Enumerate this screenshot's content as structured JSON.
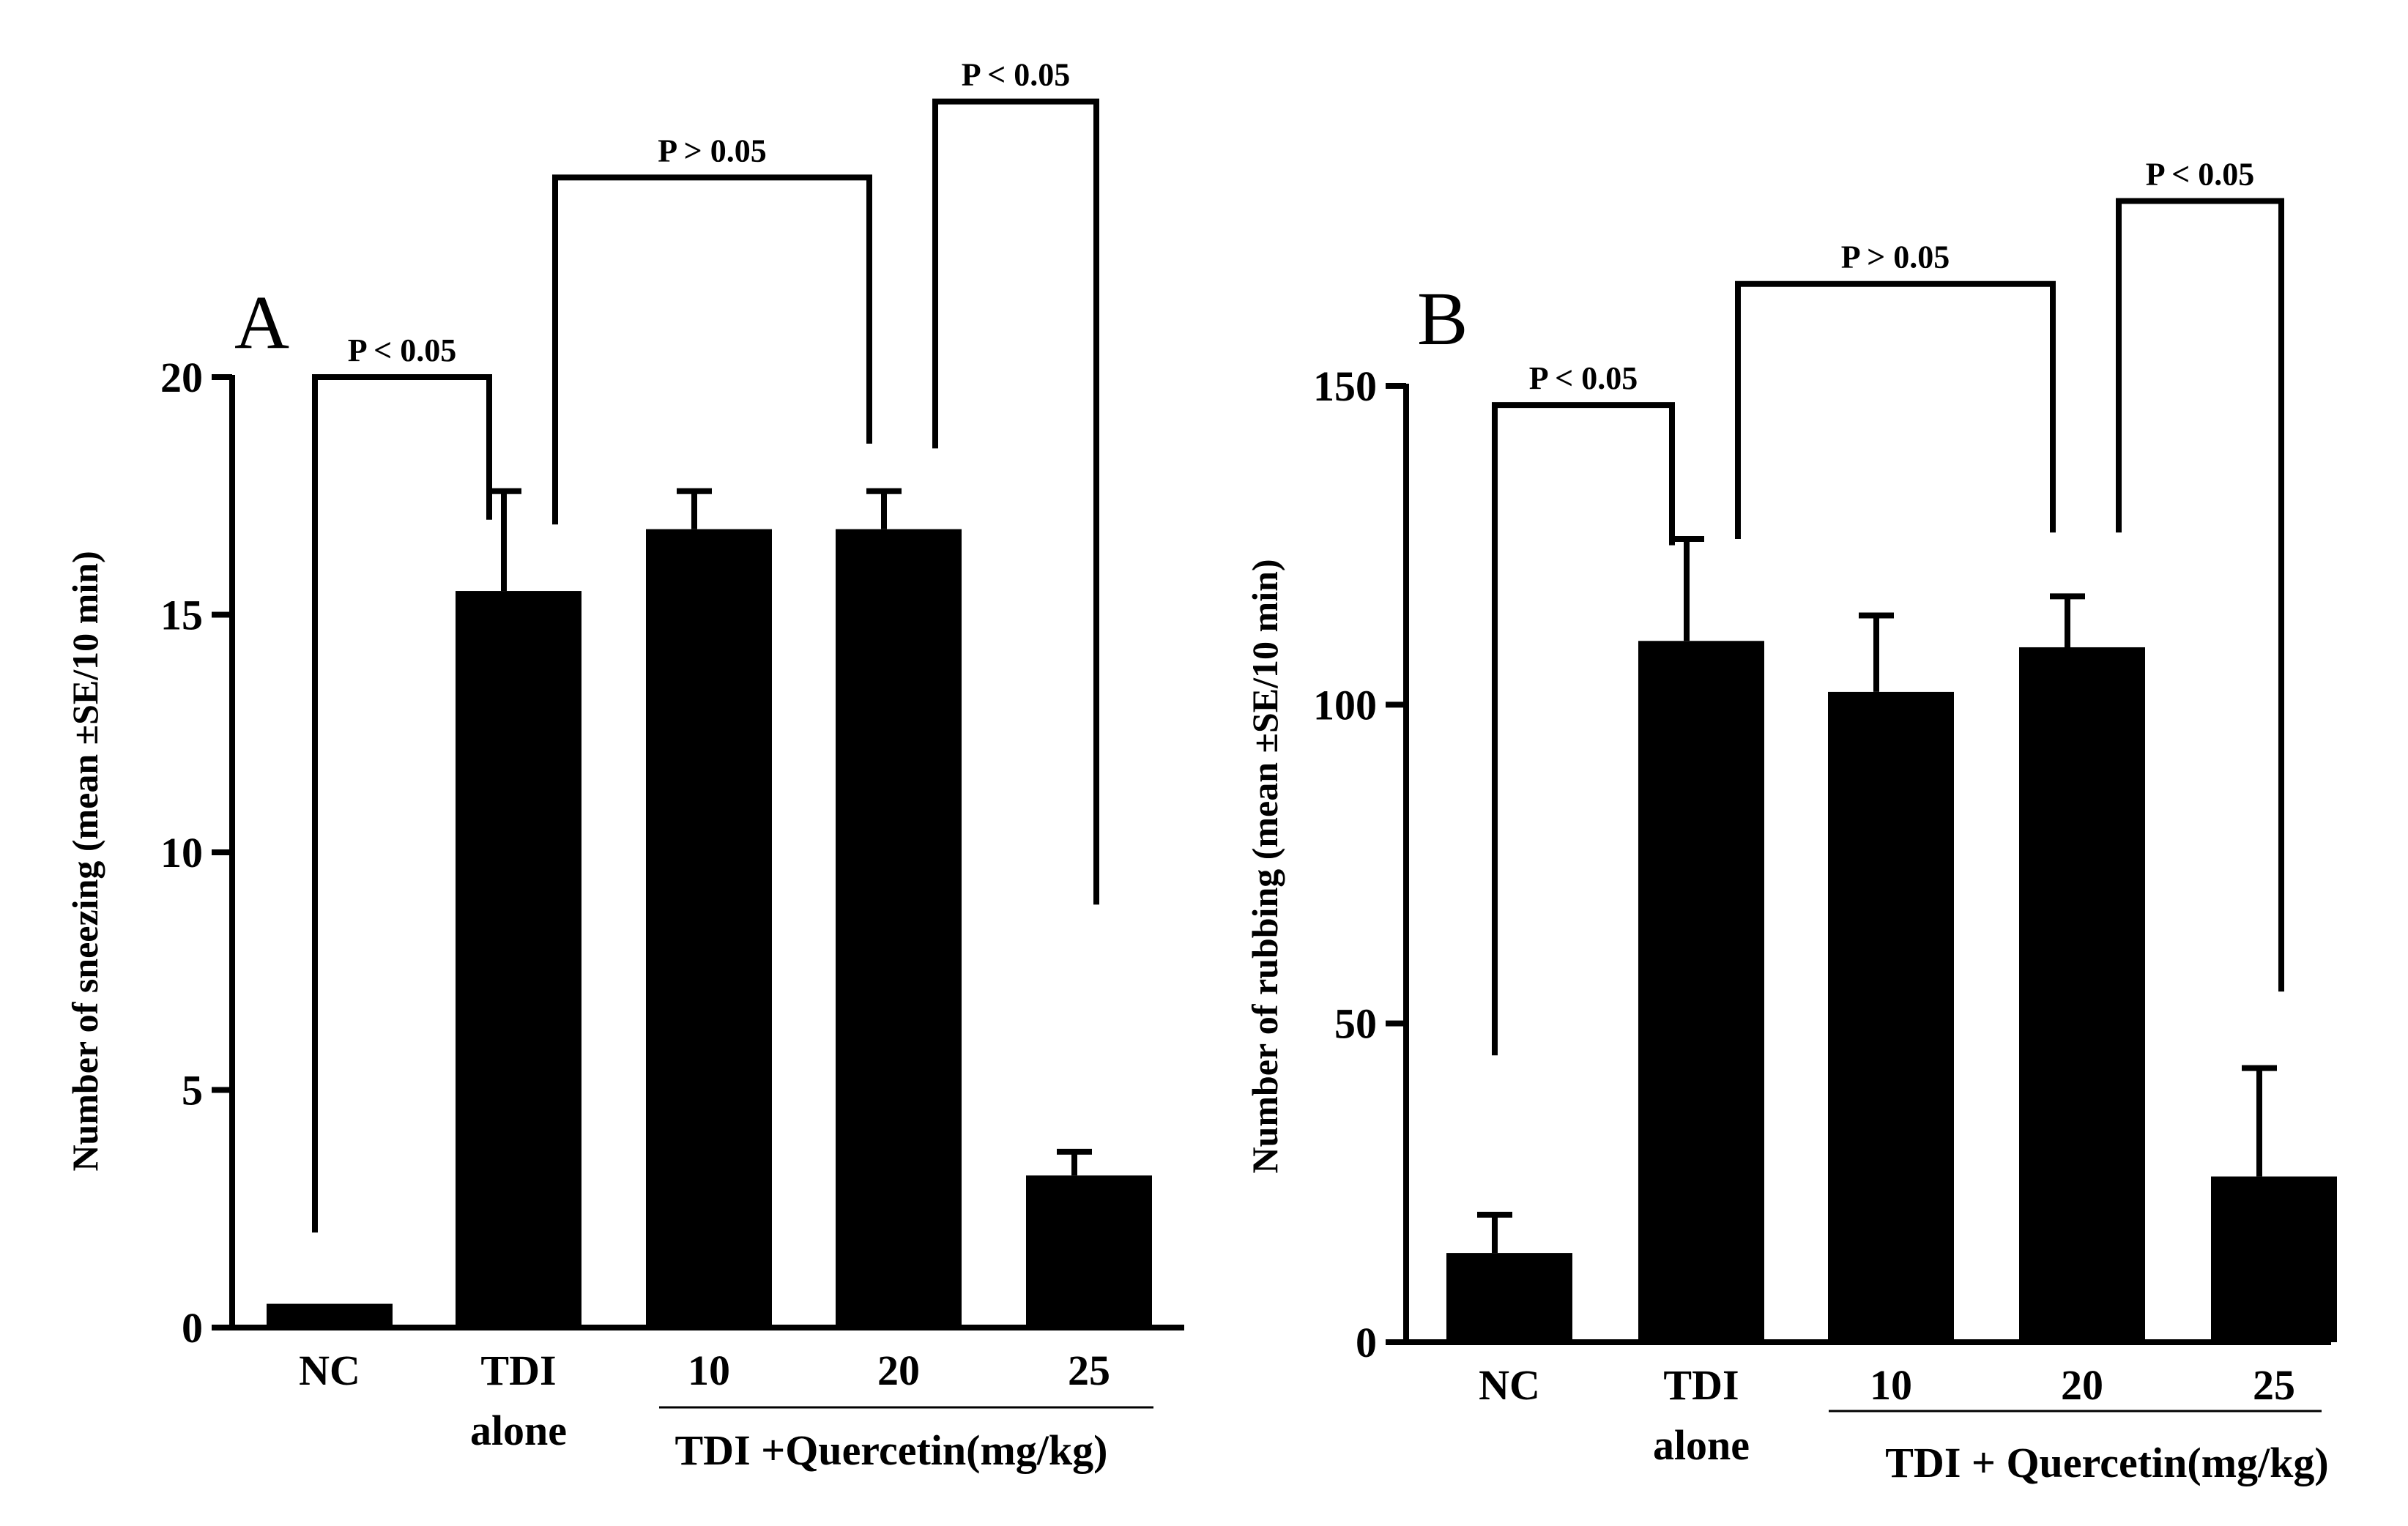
{
  "chart_data": [
    {
      "type": "bar",
      "panel_label": "A",
      "categories": [
        "NC",
        "TDI\nalone",
        "10",
        "20",
        "25"
      ],
      "values": [
        0.5,
        15.5,
        16.8,
        16.8,
        3.2
      ],
      "errors": [
        0,
        2.1,
        0.8,
        0.8,
        0.5
      ],
      "ylabel": "Number  of sneezing (mean ±SE/10 min)",
      "xlabel": "TDI +Quercetin(mg/kg)",
      "xlabel_span": [
        2,
        4
      ],
      "ylim": [
        0,
        20
      ],
      "yticks": [
        0,
        5,
        10,
        15,
        20
      ],
      "grid": false,
      "annotations": [
        {
          "text": "P < 0.05",
          "from": 0,
          "to": 1,
          "y": 20.0,
          "left_drop": 2.0,
          "right_drop": 17.0
        },
        {
          "text": "P > 0.05",
          "from": 1,
          "to": 3,
          "y": 24.2,
          "left_drop": 16.9,
          "right_drop": 18.6
        },
        {
          "text": "P < 0.05",
          "from": 3,
          "to": 4,
          "y": 25.8,
          "left_drop": 18.5,
          "right_drop": 8.9
        }
      ]
    },
    {
      "type": "bar",
      "panel_label": "B",
      "categories": [
        "NC",
        "TDI\nalone",
        "10",
        "20",
        "25"
      ],
      "values": [
        14,
        110,
        102,
        109,
        26
      ],
      "errors": [
        6,
        16,
        12,
        8,
        17
      ],
      "ylabel": "Number  of rubbing  (mean ±SE/10 min)",
      "xlabel": "TDI + Quercetin(mg/kg)",
      "xlabel_span": [
        2,
        4
      ],
      "ylim": [
        0,
        150
      ],
      "yticks": [
        0,
        50,
        100,
        150
      ],
      "grid": false,
      "annotations": [
        {
          "text": "P < 0.05",
          "from": 0,
          "to": 1,
          "y": 147,
          "left_drop": 45,
          "right_drop": 125
        },
        {
          "text": "P > 0.05",
          "from": 1,
          "to": 3,
          "y": 166,
          "left_drop": 126,
          "right_drop": 127
        },
        {
          "text": "P < 0.05",
          "from": 3,
          "to": 4,
          "y": 179,
          "left_drop": 127,
          "right_drop": 55
        }
      ]
    }
  ]
}
